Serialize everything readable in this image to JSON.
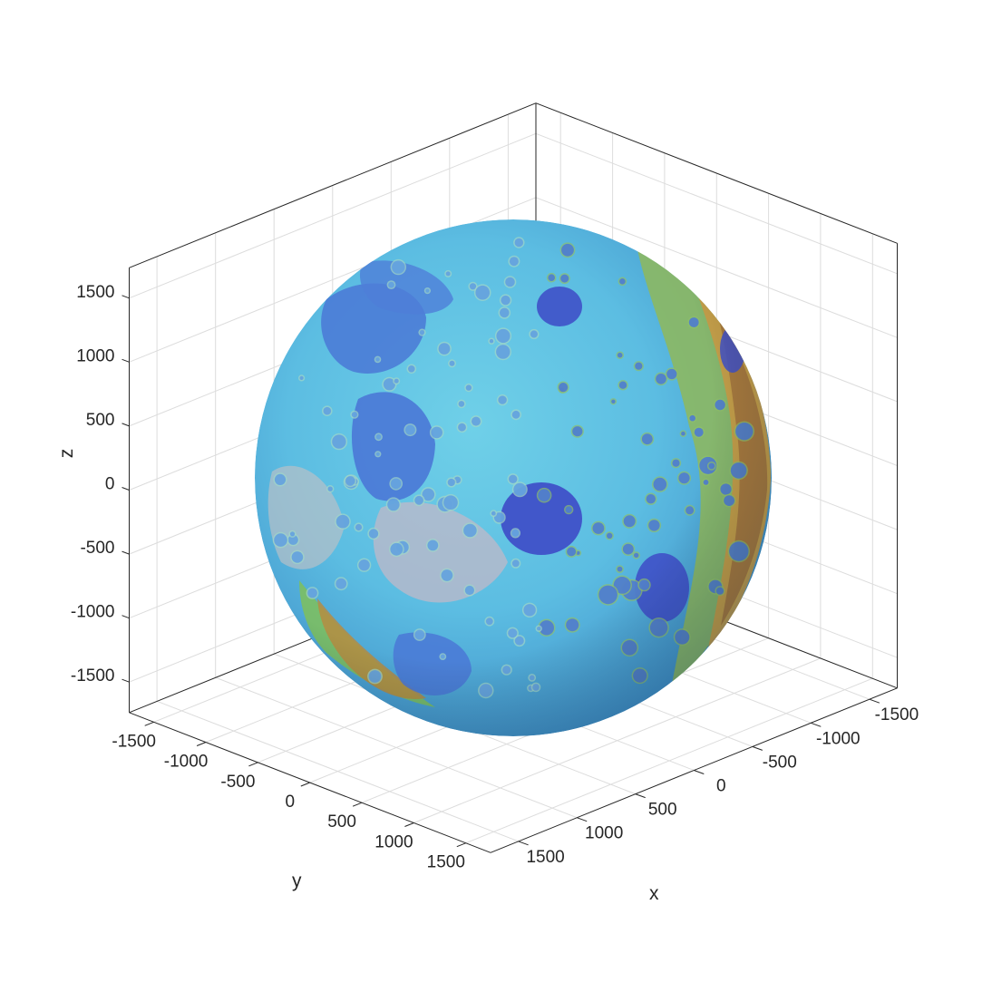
{
  "chart_data": {
    "type": "surface",
    "surface": "sphere",
    "radius": 1737.4,
    "colors": {
      "ocean_deep": "#3f51c8",
      "mare": "#4a78d6",
      "lowland": "#5fb4e6",
      "mid": "#63c8e0",
      "plain": "#b8c0c8",
      "highland_green": "#7fbf5a",
      "highland_orange": "#d9a441",
      "rim_brown": "#9a6a3a"
    },
    "axes": {
      "x": {
        "label": "x",
        "range": [
          -1737.4,
          1737.4
        ],
        "ticks": [
          -1500,
          -1000,
          -500,
          0,
          500,
          1000,
          1500
        ],
        "tick_labels": [
          "-1500",
          "-1000",
          "-500",
          "0",
          "500",
          "1000",
          "1500"
        ]
      },
      "y": {
        "label": "y",
        "range": [
          -1737.4,
          1737.4
        ],
        "ticks": [
          -1500,
          -1000,
          -500,
          0,
          500,
          1000,
          1500
        ],
        "tick_labels": [
          "-1500",
          "-1000",
          "-500",
          "0",
          "500",
          "1000",
          "1500"
        ]
      },
      "z": {
        "label": "z",
        "range": [
          -1737.4,
          1737.4
        ],
        "ticks": [
          -1500,
          -1000,
          -500,
          0,
          500,
          1000,
          1500
        ],
        "tick_labels": [
          "-1500",
          "-1000",
          "-500",
          "0",
          "500",
          "1000",
          "1500"
        ]
      }
    },
    "grid": true,
    "box": true
  }
}
